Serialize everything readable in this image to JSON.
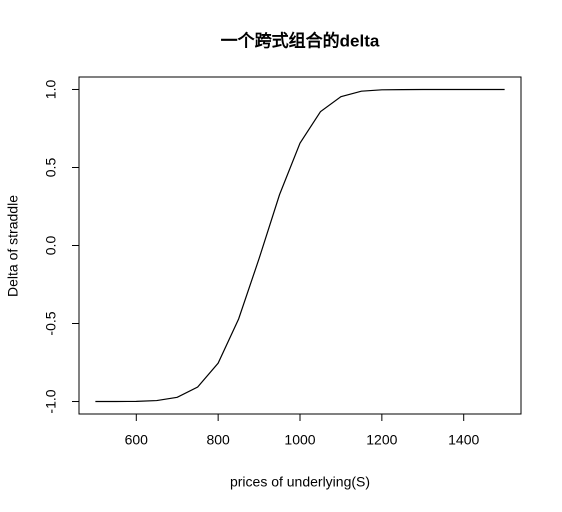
{
  "chart_data": {
    "type": "line",
    "title": "一个跨式组合的delta",
    "x_label": "prices of underlying(S)",
    "y_label": "Delta of straddle",
    "x": [
      500,
      550,
      600,
      650,
      700,
      750,
      800,
      850,
      900,
      950,
      1000,
      1050,
      1100,
      1150,
      1200,
      1250,
      1300,
      1350,
      1400,
      1450,
      1500
    ],
    "series": [
      {
        "name": "delta",
        "color": "#000000",
        "values": [
          -1,
          -1,
          -0.999,
          -0.994,
          -0.973,
          -0.907,
          -0.754,
          -0.471,
          -0.084,
          0.326,
          0.656,
          0.858,
          0.954,
          0.989,
          0.998,
          0.999,
          1,
          1,
          1,
          1,
          1
        ]
      }
    ],
    "xlim": [
      460,
      1540
    ],
    "ylim": [
      -1.08,
      1.08
    ],
    "xticks": [
      600,
      800,
      1000,
      1200,
      1400
    ],
    "yticks": [
      {
        "value": -1,
        "label": "-1.0"
      },
      -0.5,
      {
        "value": 0,
        "label": "0.0"
      },
      0.5,
      {
        "value": 1,
        "label": "1.0"
      }
    ]
  }
}
